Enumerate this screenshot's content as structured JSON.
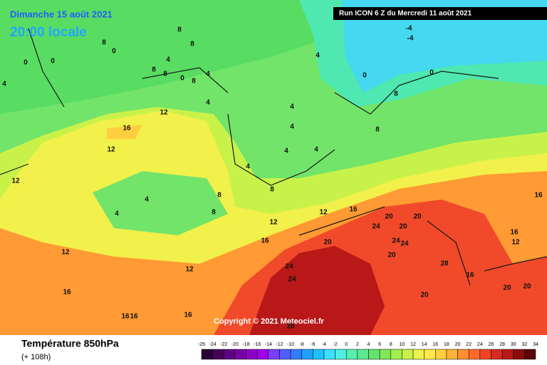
{
  "header": {
    "title": "Dimanche 15 août 2021",
    "subtitle": "20:00 locale",
    "run": "Run ICON 6 Z du Mercredi 11 août 2021"
  },
  "map": {
    "copyright": "Copyright © 2021 Meteociel.fr",
    "contour_labels": [
      4,
      8,
      0,
      0,
      0,
      8,
      8,
      8,
      4,
      4,
      0,
      8,
      8,
      4,
      -4,
      -4,
      0,
      0,
      8,
      8,
      4,
      12,
      16,
      12,
      12,
      4,
      4,
      4,
      4,
      4,
      4,
      8,
      8,
      4,
      8,
      12,
      12,
      16,
      12,
      16,
      20,
      20,
      20,
      24,
      24,
      24,
      20,
      24,
      28,
      20,
      16,
      16,
      20,
      24,
      28,
      12,
      16,
      16,
      16,
      12,
      16,
      16,
      20,
      20
    ]
  },
  "footer": {
    "title": "Température 850hPa",
    "subtitle": "(+ 108h)"
  },
  "colorbar": {
    "ticks": [
      -26,
      -24,
      -22,
      -20,
      -18,
      -16,
      -14,
      -12,
      -10,
      -8,
      -6,
      -4,
      -2,
      0,
      2,
      4,
      6,
      8,
      10,
      12,
      14,
      16,
      18,
      20,
      22,
      24,
      26,
      28,
      30,
      32,
      34
    ],
    "colors": [
      "#2b0038",
      "#46005a",
      "#5e0080",
      "#7600a6",
      "#8c00c8",
      "#a000e6",
      "#7a3cff",
      "#4f5cff",
      "#2f7dff",
      "#1fa0ff",
      "#1ec2ff",
      "#3ce0ff",
      "#4ff0e0",
      "#55f0b0",
      "#5ee890",
      "#64e26e",
      "#7ee85a",
      "#a2ee4e",
      "#c8f24a",
      "#eef24a",
      "#ffe84a",
      "#ffcf40",
      "#ffb23a",
      "#ff8f32",
      "#ff6a2a",
      "#f04424",
      "#d82a20",
      "#b81818",
      "#8a0c0c",
      "#5a0606"
    ]
  }
}
